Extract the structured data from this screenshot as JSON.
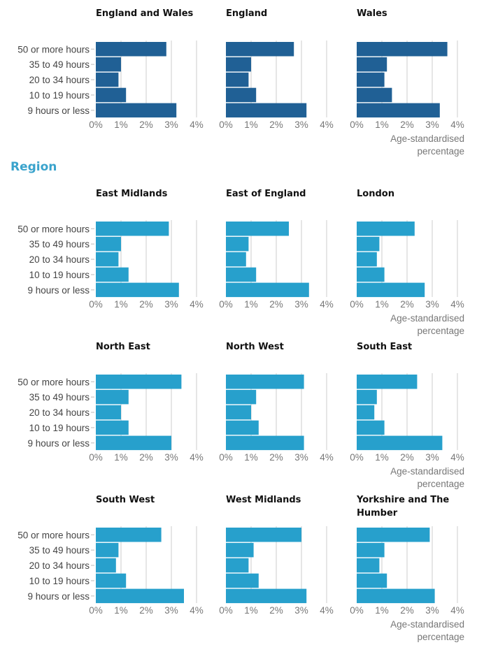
{
  "section_heading": "Region",
  "colors": {
    "nation": "#206095",
    "region": "#27a0cc",
    "grid": "#cccccc"
  },
  "axis_title_line1": "Age-standardised",
  "axis_title_line2": "percentage",
  "chart_data": {
    "type": "bar",
    "orientation": "horizontal",
    "categories": [
      "50 or more hours",
      "35 to 49 hours",
      "20 to 34 hours",
      "10 to 19 hours",
      "9 hours or less"
    ],
    "xlim": [
      0,
      4
    ],
    "xticks": [
      "0%",
      "1%",
      "2%",
      "3%",
      "4%"
    ],
    "xlabel": "Age-standardised percentage",
    "grid": true,
    "panels": [
      {
        "title": "England and Wales",
        "group": "nation",
        "values": [
          2.8,
          1.0,
          0.9,
          1.2,
          3.2
        ]
      },
      {
        "title": "England",
        "group": "nation",
        "values": [
          2.7,
          1.0,
          0.9,
          1.2,
          3.2
        ]
      },
      {
        "title": "Wales",
        "group": "nation",
        "values": [
          3.6,
          1.2,
          1.1,
          1.4,
          3.3
        ]
      },
      {
        "title": "East Midlands",
        "group": "region",
        "values": [
          2.9,
          1.0,
          0.9,
          1.3,
          3.3
        ]
      },
      {
        "title": "East of England",
        "group": "region",
        "values": [
          2.5,
          0.9,
          0.8,
          1.2,
          3.3
        ]
      },
      {
        "title": "London",
        "group": "region",
        "values": [
          2.3,
          0.9,
          0.8,
          1.1,
          2.7
        ]
      },
      {
        "title": "North East",
        "group": "region",
        "values": [
          3.4,
          1.3,
          1.0,
          1.3,
          3.0
        ]
      },
      {
        "title": "North West",
        "group": "region",
        "values": [
          3.1,
          1.2,
          1.0,
          1.3,
          3.1
        ]
      },
      {
        "title": "South East",
        "group": "region",
        "values": [
          2.4,
          0.8,
          0.7,
          1.1,
          3.4
        ]
      },
      {
        "title": "South West",
        "group": "region",
        "values": [
          2.6,
          0.9,
          0.8,
          1.2,
          3.5
        ]
      },
      {
        "title": "West Midlands",
        "group": "region",
        "values": [
          3.0,
          1.1,
          0.9,
          1.3,
          3.2
        ]
      },
      {
        "title": "Yorkshire and The Humber",
        "group": "region",
        "values": [
          2.9,
          1.1,
          0.9,
          1.2,
          3.1
        ]
      }
    ]
  }
}
